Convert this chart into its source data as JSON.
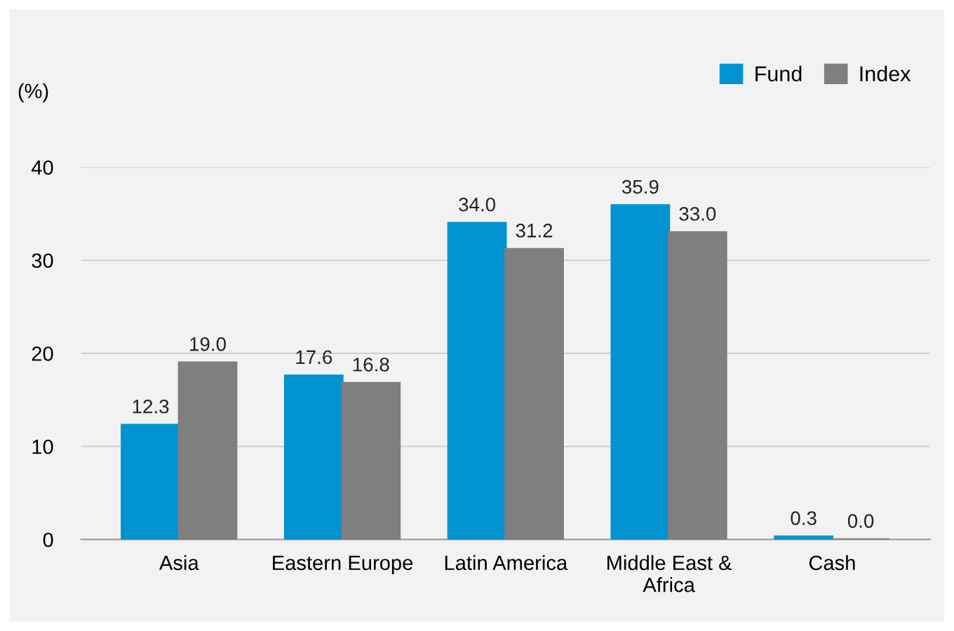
{
  "chart_data": {
    "type": "bar",
    "ylabel": "(%)",
    "categories": [
      "Asia",
      "Eastern Europe",
      "Latin America",
      "Middle East &\nAfrica",
      "Cash"
    ],
    "series": [
      {
        "name": "Fund",
        "color": "#0093d0",
        "values": [
          12.3,
          17.6,
          34.0,
          35.9,
          0.3
        ],
        "value_labels": [
          "12.3",
          "17.6",
          "34.0",
          "35.9",
          "0.3"
        ]
      },
      {
        "name": "Index",
        "color": "#7f7f7f",
        "values": [
          19.0,
          16.8,
          31.2,
          33.0,
          0.0
        ],
        "value_labels": [
          "19.0",
          "16.8",
          "31.2",
          "33.0",
          "0.0"
        ]
      }
    ],
    "ylim": [
      0,
      40
    ],
    "yticks": [
      0,
      10,
      20,
      30,
      40
    ],
    "grid": "y",
    "legend": "top right"
  }
}
